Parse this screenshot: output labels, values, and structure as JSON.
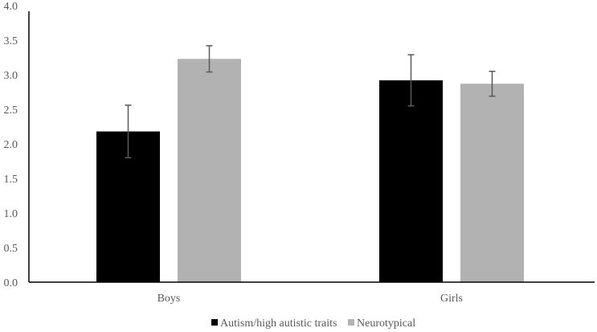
{
  "chart_data": {
    "type": "bar",
    "title": "",
    "xlabel": "",
    "ylabel": "",
    "ylim": [
      0,
      4.0
    ],
    "yticks": [
      "0.0",
      "0.5",
      "1.0",
      "1.5",
      "2.0",
      "2.5",
      "3.0",
      "3.5",
      "4.0"
    ],
    "grid": false,
    "legend_position": "bottom",
    "categories": [
      "Boys",
      "Girls"
    ],
    "series": [
      {
        "name": "Autism/high autistic traits",
        "color": "#000000",
        "values": [
          2.18,
          2.92
        ],
        "errors": [
          0.38,
          0.37
        ]
      },
      {
        "name": "Neurotypical",
        "color": "#b2b2b2",
        "values": [
          3.23,
          2.87
        ],
        "errors": [
          0.19,
          0.18
        ]
      }
    ]
  }
}
